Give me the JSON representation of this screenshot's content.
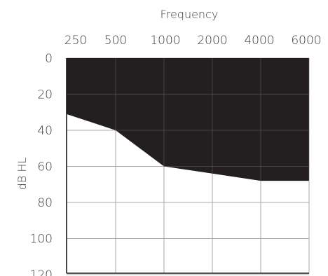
{
  "chart_data": {
    "type": "area",
    "title": "",
    "xlabel": "Frequency",
    "ylabel": "dB HL",
    "x_ticks": [
      "250",
      "500",
      "1000",
      "2000",
      "4000",
      "6000"
    ],
    "y_ticks": [
      "0",
      "20",
      "40",
      "60",
      "80",
      "100",
      "120"
    ],
    "ylim": [
      0,
      120
    ],
    "y_inverted": true,
    "grid": true,
    "series": [
      {
        "x": [
          "250",
          "500",
          "1000",
          "2000",
          "4000",
          "6000"
        ],
        "values": [
          31,
          40,
          60,
          64,
          68,
          68
        ]
      }
    ],
    "colors": {
      "fill": "#231f20",
      "grid": "#a8a8a8",
      "axis": "#1a1a1a",
      "text": "#3a3a3a"
    }
  }
}
